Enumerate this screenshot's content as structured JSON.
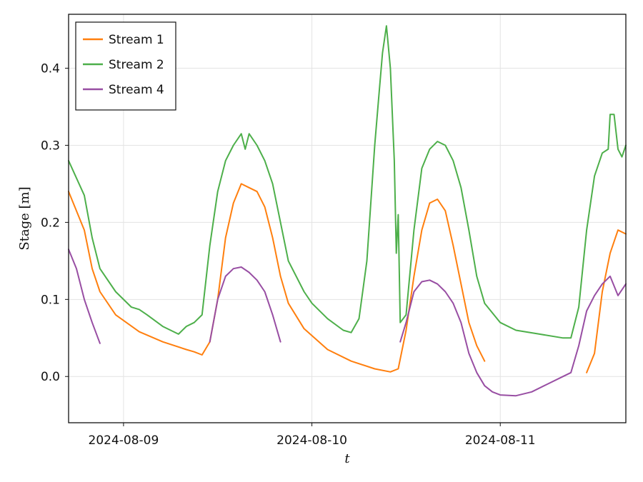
{
  "chart_data": {
    "type": "line",
    "ylabel": "Stage [m]",
    "xlabel": "t",
    "xlim": [
      "2024-08-08 17:00",
      "2024-08-11 16:00"
    ],
    "ylim": [
      -0.06,
      0.47
    ],
    "x_ticks": [
      "2024-08-09",
      "2024-08-10",
      "2024-08-11"
    ],
    "y_ticks": [
      "0.0",
      "0.1",
      "0.2",
      "0.3",
      "0.4"
    ],
    "y_tick_values": [
      0.0,
      0.1,
      0.2,
      0.3,
      0.4
    ],
    "grid": true,
    "legend_position": "top-left",
    "series": [
      {
        "name": "Stream 1",
        "color": "#ff7f0e",
        "segments": [
          [
            [
              "2024-08-08 17:00",
              0.24
            ],
            [
              "2024-08-08 19:00",
              0.19
            ],
            [
              "2024-08-08 20:00",
              0.14
            ],
            [
              "2024-08-08 21:00",
              0.11
            ],
            [
              "2024-08-08 23:00",
              0.08
            ],
            [
              "2024-08-09 02:00",
              0.058
            ],
            [
              "2024-08-09 05:00",
              0.045
            ],
            [
              "2024-08-09 08:00",
              0.035
            ],
            [
              "2024-08-09 09:00",
              0.032
            ],
            [
              "2024-08-09 10:00",
              0.028
            ],
            [
              "2024-08-09 11:00",
              0.045
            ],
            [
              "2024-08-09 12:00",
              0.1
            ],
            [
              "2024-08-09 13:00",
              0.18
            ],
            [
              "2024-08-09 14:00",
              0.225
            ],
            [
              "2024-08-09 15:00",
              0.25
            ],
            [
              "2024-08-09 16:00",
              0.245
            ],
            [
              "2024-08-09 17:00",
              0.24
            ],
            [
              "2024-08-09 18:00",
              0.22
            ],
            [
              "2024-08-09 19:00",
              0.18
            ],
            [
              "2024-08-09 20:00",
              0.13
            ],
            [
              "2024-08-09 21:00",
              0.095
            ],
            [
              "2024-08-09 23:00",
              0.062
            ],
            [
              "2024-08-10 02:00",
              0.035
            ],
            [
              "2024-08-10 05:00",
              0.02
            ],
            [
              "2024-08-10 08:00",
              0.01
            ],
            [
              "2024-08-10 10:00",
              0.006
            ],
            [
              "2024-08-10 11:00",
              0.01
            ],
            [
              "2024-08-10 12:00",
              0.06
            ],
            [
              "2024-08-10 13:00",
              0.13
            ],
            [
              "2024-08-10 14:00",
              0.19
            ],
            [
              "2024-08-10 15:00",
              0.225
            ],
            [
              "2024-08-10 16:00",
              0.23
            ],
            [
              "2024-08-10 17:00",
              0.215
            ],
            [
              "2024-08-10 18:00",
              0.17
            ],
            [
              "2024-08-10 19:00",
              0.12
            ],
            [
              "2024-08-10 20:00",
              0.07
            ],
            [
              "2024-08-10 21:00",
              0.04
            ],
            [
              "2024-08-10 22:00",
              0.02
            ]
          ],
          [
            [
              "2024-08-11 11:00",
              0.005
            ],
            [
              "2024-08-11 12:00",
              0.03
            ],
            [
              "2024-08-11 13:00",
              0.11
            ],
            [
              "2024-08-11 14:00",
              0.16
            ],
            [
              "2024-08-11 15:00",
              0.19
            ],
            [
              "2024-08-11 16:00",
              0.185
            ]
          ]
        ]
      },
      {
        "name": "Stream 2",
        "color": "#4daf4a",
        "segments": [
          [
            [
              "2024-08-08 17:00",
              0.28
            ],
            [
              "2024-08-08 19:00",
              0.235
            ],
            [
              "2024-08-08 20:00",
              0.18
            ],
            [
              "2024-08-08 21:00",
              0.14
            ],
            [
              "2024-08-08 23:00",
              0.11
            ],
            [
              "2024-08-09 01:00",
              0.09
            ],
            [
              "2024-08-09 02:00",
              0.087
            ],
            [
              "2024-08-09 03:00",
              0.08
            ],
            [
              "2024-08-09 05:00",
              0.065
            ],
            [
              "2024-08-09 07:00",
              0.055
            ],
            [
              "2024-08-09 08:00",
              0.065
            ],
            [
              "2024-08-09 09:00",
              0.07
            ],
            [
              "2024-08-09 10:00",
              0.08
            ],
            [
              "2024-08-09 11:00",
              0.17
            ],
            [
              "2024-08-09 12:00",
              0.24
            ],
            [
              "2024-08-09 13:00",
              0.28
            ],
            [
              "2024-08-09 14:00",
              0.3
            ],
            [
              "2024-08-09 15:00",
              0.315
            ],
            [
              "2024-08-09 15:30",
              0.295
            ],
            [
              "2024-08-09 16:00",
              0.315
            ],
            [
              "2024-08-09 17:00",
              0.3
            ],
            [
              "2024-08-09 18:00",
              0.28
            ],
            [
              "2024-08-09 19:00",
              0.25
            ],
            [
              "2024-08-09 20:00",
              0.2
            ],
            [
              "2024-08-09 21:00",
              0.15
            ],
            [
              "2024-08-09 23:00",
              0.11
            ],
            [
              "2024-08-10 00:00",
              0.095
            ],
            [
              "2024-08-10 02:00",
              0.075
            ],
            [
              "2024-08-10 04:00",
              0.06
            ],
            [
              "2024-08-10 05:00",
              0.057
            ],
            [
              "2024-08-10 06:00",
              0.075
            ],
            [
              "2024-08-10 07:00",
              0.15
            ],
            [
              "2024-08-10 08:00",
              0.3
            ],
            [
              "2024-08-10 08:30",
              0.36
            ],
            [
              "2024-08-10 09:00",
              0.42
            ],
            [
              "2024-08-10 09:30",
              0.455
            ],
            [
              "2024-08-10 10:00",
              0.4
            ],
            [
              "2024-08-10 10:30",
              0.28
            ],
            [
              "2024-08-10 10:45",
              0.16
            ],
            [
              "2024-08-10 11:00",
              0.21
            ],
            [
              "2024-08-10 11:15",
              0.07
            ],
            [
              "2024-08-10 12:00",
              0.08
            ],
            [
              "2024-08-10 13:00",
              0.19
            ],
            [
              "2024-08-10 14:00",
              0.27
            ],
            [
              "2024-08-10 15:00",
              0.295
            ],
            [
              "2024-08-10 16:00",
              0.305
            ],
            [
              "2024-08-10 17:00",
              0.3
            ],
            [
              "2024-08-10 18:00",
              0.28
            ],
            [
              "2024-08-10 19:00",
              0.245
            ],
            [
              "2024-08-10 20:00",
              0.19
            ],
            [
              "2024-08-10 21:00",
              0.13
            ],
            [
              "2024-08-10 22:00",
              0.095
            ],
            [
              "2024-08-11 00:00",
              0.07
            ],
            [
              "2024-08-11 02:00",
              0.06
            ],
            [
              "2024-08-11 05:00",
              0.055
            ],
            [
              "2024-08-11 08:00",
              0.05
            ],
            [
              "2024-08-11 09:00",
              0.05
            ],
            [
              "2024-08-11 10:00",
              0.09
            ],
            [
              "2024-08-11 11:00",
              0.19
            ],
            [
              "2024-08-11 12:00",
              0.26
            ],
            [
              "2024-08-11 13:00",
              0.29
            ],
            [
              "2024-08-11 13:45",
              0.295
            ],
            [
              "2024-08-11 14:00",
              0.34
            ],
            [
              "2024-08-11 14:30",
              0.34
            ],
            [
              "2024-08-11 15:00",
              0.295
            ],
            [
              "2024-08-11 15:30",
              0.285
            ],
            [
              "2024-08-11 16:00",
              0.3
            ]
          ]
        ]
      },
      {
        "name": "Stream 4",
        "color": "#984ea3",
        "segments": [
          [
            [
              "2024-08-08 17:00",
              0.165
            ],
            [
              "2024-08-08 18:00",
              0.14
            ],
            [
              "2024-08-08 19:00",
              0.1
            ],
            [
              "2024-08-08 20:00",
              0.07
            ],
            [
              "2024-08-08 21:00",
              0.043
            ]
          ],
          [
            [
              "2024-08-09 11:00",
              0.045
            ],
            [
              "2024-08-09 12:00",
              0.1
            ],
            [
              "2024-08-09 13:00",
              0.13
            ],
            [
              "2024-08-09 14:00",
              0.14
            ],
            [
              "2024-08-09 15:00",
              0.142
            ],
            [
              "2024-08-09 16:00",
              0.135
            ],
            [
              "2024-08-09 17:00",
              0.125
            ],
            [
              "2024-08-09 18:00",
              0.11
            ],
            [
              "2024-08-09 19:00",
              0.08
            ],
            [
              "2024-08-09 20:00",
              0.045
            ]
          ],
          [
            [
              "2024-08-10 11:15",
              0.045
            ],
            [
              "2024-08-10 12:00",
              0.07
            ],
            [
              "2024-08-10 13:00",
              0.11
            ],
            [
              "2024-08-10 14:00",
              0.123
            ],
            [
              "2024-08-10 15:00",
              0.125
            ],
            [
              "2024-08-10 16:00",
              0.12
            ],
            [
              "2024-08-10 17:00",
              0.11
            ],
            [
              "2024-08-10 18:00",
              0.095
            ],
            [
              "2024-08-10 19:00",
              0.07
            ],
            [
              "2024-08-10 20:00",
              0.03
            ],
            [
              "2024-08-10 21:00",
              0.005
            ],
            [
              "2024-08-10 22:00",
              -0.012
            ],
            [
              "2024-08-10 23:00",
              -0.02
            ],
            [
              "2024-08-11 00:00",
              -0.024
            ],
            [
              "2024-08-11 02:00",
              -0.025
            ],
            [
              "2024-08-11 04:00",
              -0.02
            ],
            [
              "2024-08-11 06:00",
              -0.01
            ],
            [
              "2024-08-11 08:00",
              0.0
            ],
            [
              "2024-08-11 09:00",
              0.005
            ],
            [
              "2024-08-11 10:00",
              0.04
            ],
            [
              "2024-08-11 11:00",
              0.085
            ],
            [
              "2024-08-11 12:00",
              0.105
            ],
            [
              "2024-08-11 13:00",
              0.12
            ],
            [
              "2024-08-11 14:00",
              0.13
            ],
            [
              "2024-08-11 15:00",
              0.105
            ],
            [
              "2024-08-11 16:00",
              0.12
            ]
          ]
        ]
      }
    ]
  }
}
